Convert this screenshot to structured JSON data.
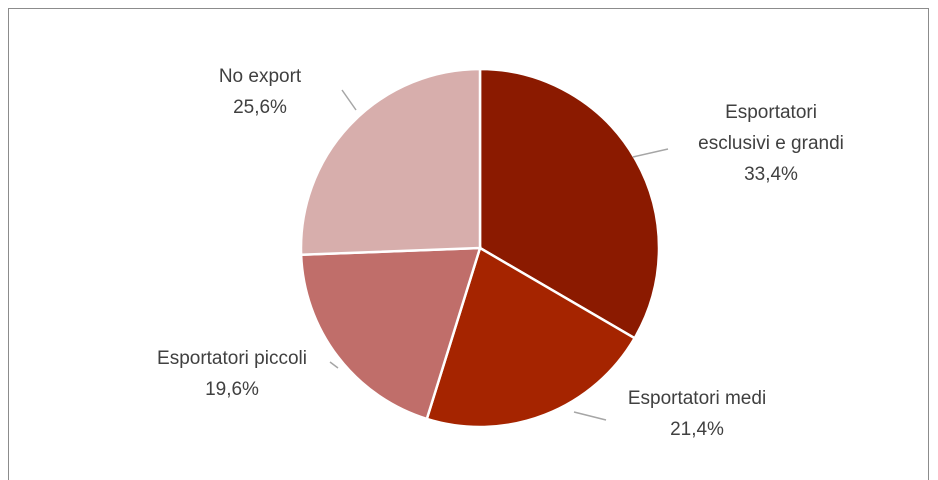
{
  "chart_data": {
    "type": "pie",
    "title": "",
    "slices": [
      {
        "name_lines": [
          "Esportatori",
          "esclusivi e grandi"
        ],
        "value": 33.4,
        "label": "33,4%",
        "color": "#8b1a00"
      },
      {
        "name_lines": [
          "Esportatori medi"
        ],
        "value": 21.4,
        "label": "21,4%",
        "color": "#a52400"
      },
      {
        "name_lines": [
          "Esportatori piccoli"
        ],
        "value": 19.6,
        "label": "19,6%",
        "color": "#c06e6a"
      },
      {
        "name_lines": [
          "No export"
        ],
        "value": 25.6,
        "label": "25,6%",
        "color": "#d7aeac"
      }
    ],
    "start_angle": "12 o'clock",
    "direction": "clockwise",
    "legend": "none (labels outside slices with leader lines)"
  }
}
